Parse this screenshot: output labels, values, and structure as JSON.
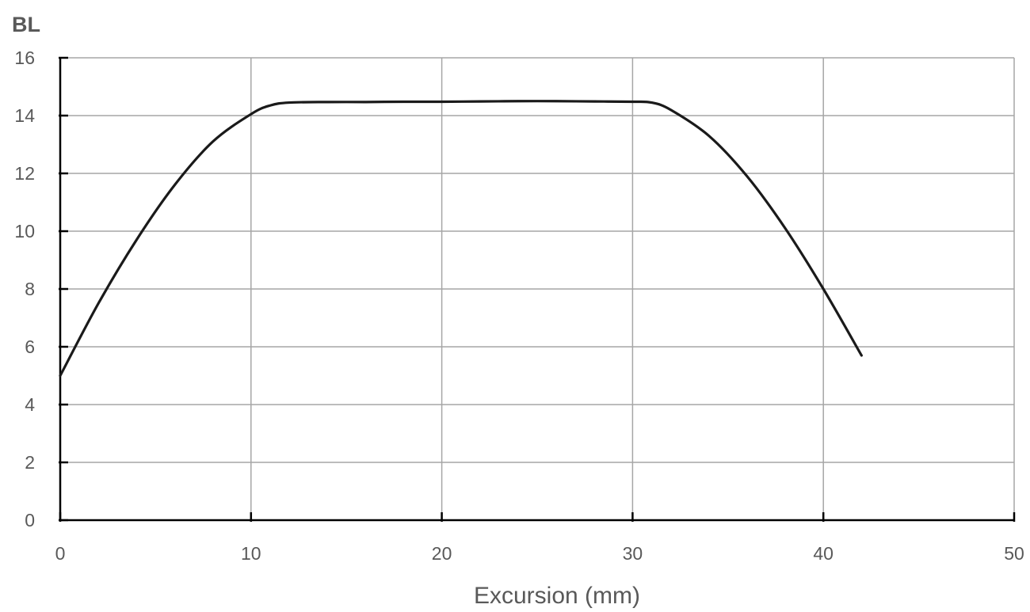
{
  "chart_data": {
    "type": "line",
    "title": "",
    "xlabel": "Excursion (mm)",
    "ylabel": "BL",
    "xlim": [
      0,
      50
    ],
    "ylim": [
      0,
      16
    ],
    "x_ticks": [
      0,
      10,
      20,
      30,
      40,
      50
    ],
    "y_ticks": [
      0,
      2,
      4,
      6,
      8,
      10,
      12,
      14,
      16
    ],
    "x_tick_labels": [
      "0",
      "10",
      "20",
      "30",
      "40",
      "50"
    ],
    "y_tick_labels": [
      "0",
      "2",
      "4",
      "6",
      "8",
      "10",
      "12",
      "14",
      "16"
    ],
    "grid": true,
    "legend": "none",
    "series": [
      {
        "color": "#1a1a1a",
        "x": [
          0,
          2,
          4,
          6,
          8,
          10,
          11,
          12,
          14,
          16,
          18,
          20,
          22,
          24,
          26,
          28,
          30,
          31,
          32,
          34,
          36,
          38,
          40,
          42
        ],
        "y": [
          5.0,
          7.5,
          9.7,
          11.6,
          13.1,
          14.05,
          14.35,
          14.45,
          14.47,
          14.47,
          14.48,
          14.48,
          14.49,
          14.5,
          14.5,
          14.49,
          14.48,
          14.45,
          14.2,
          13.3,
          11.9,
          10.1,
          8.0,
          5.7
        ]
      }
    ]
  }
}
